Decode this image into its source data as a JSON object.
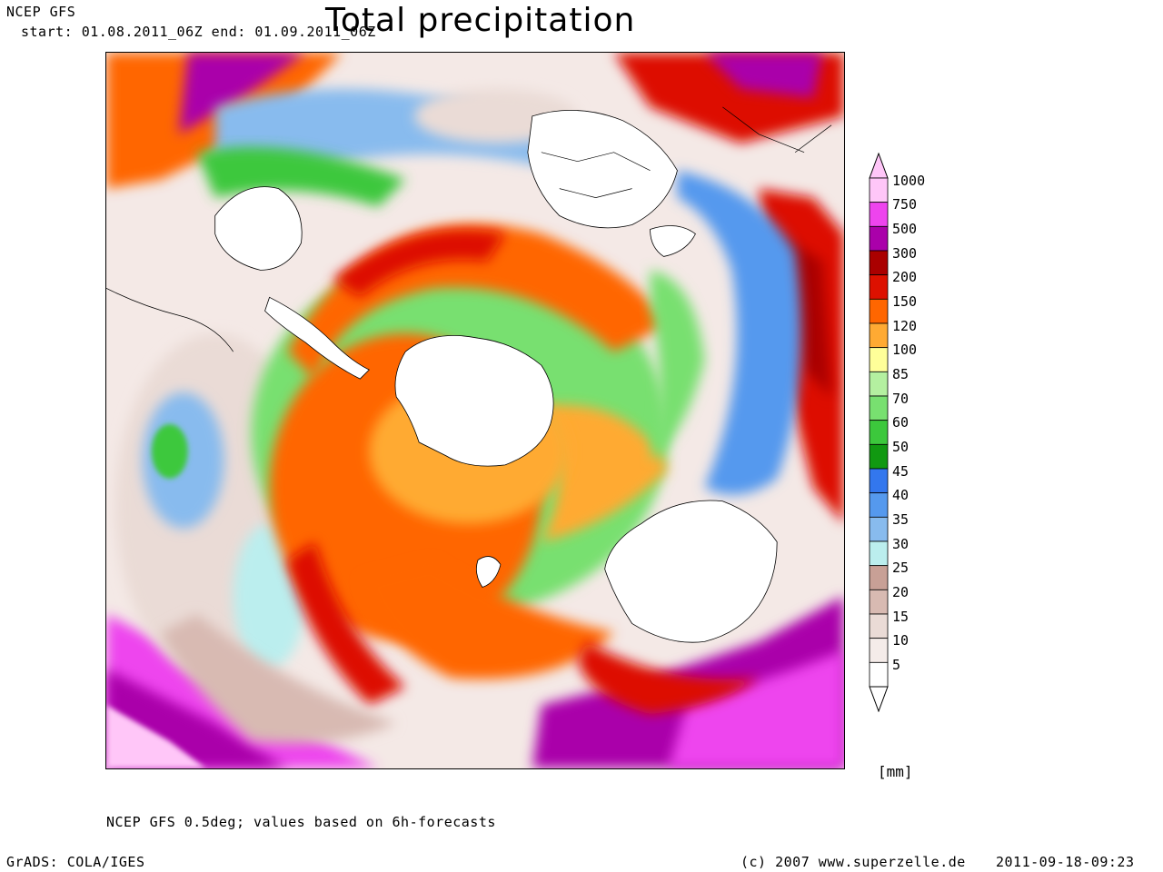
{
  "header": {
    "model": "NCEP GFS",
    "period": "start: 01.08.2011_06Z    end: 01.09.2011_06Z",
    "title": "Total precipitation"
  },
  "colorbar": {
    "levels": [
      "1000",
      "750",
      "500",
      "300",
      "200",
      "150",
      "120",
      "100",
      "85",
      "70",
      "60",
      "50",
      "45",
      "40",
      "35",
      "30",
      "25",
      "20",
      "15",
      "10",
      "5"
    ],
    "colors": [
      "#ffc6f8",
      "#ee44ee",
      "#aa00aa",
      "#aa0000",
      "#dd1100",
      "#ff6600",
      "#ffaa33",
      "#ffff99",
      "#b4f0a0",
      "#78e070",
      "#3cc83c",
      "#119911",
      "#3377ee",
      "#5599ee",
      "#88bbee",
      "#bbeeee",
      "#c8a096",
      "#d8bab2",
      "#eadbd6",
      "#f5ece9",
      "#ffffff"
    ],
    "unit": "[mm]"
  },
  "map": {
    "land_color": "#ffffff",
    "border_color": "#000000"
  },
  "footer": {
    "description": "NCEP GFS 0.5deg; values based on 6h-forecasts",
    "software": "GrADS: COLA/IGES",
    "copyright": "(c) 2007 www.superzelle.de",
    "timestamp": "2011-09-18-09:23"
  }
}
